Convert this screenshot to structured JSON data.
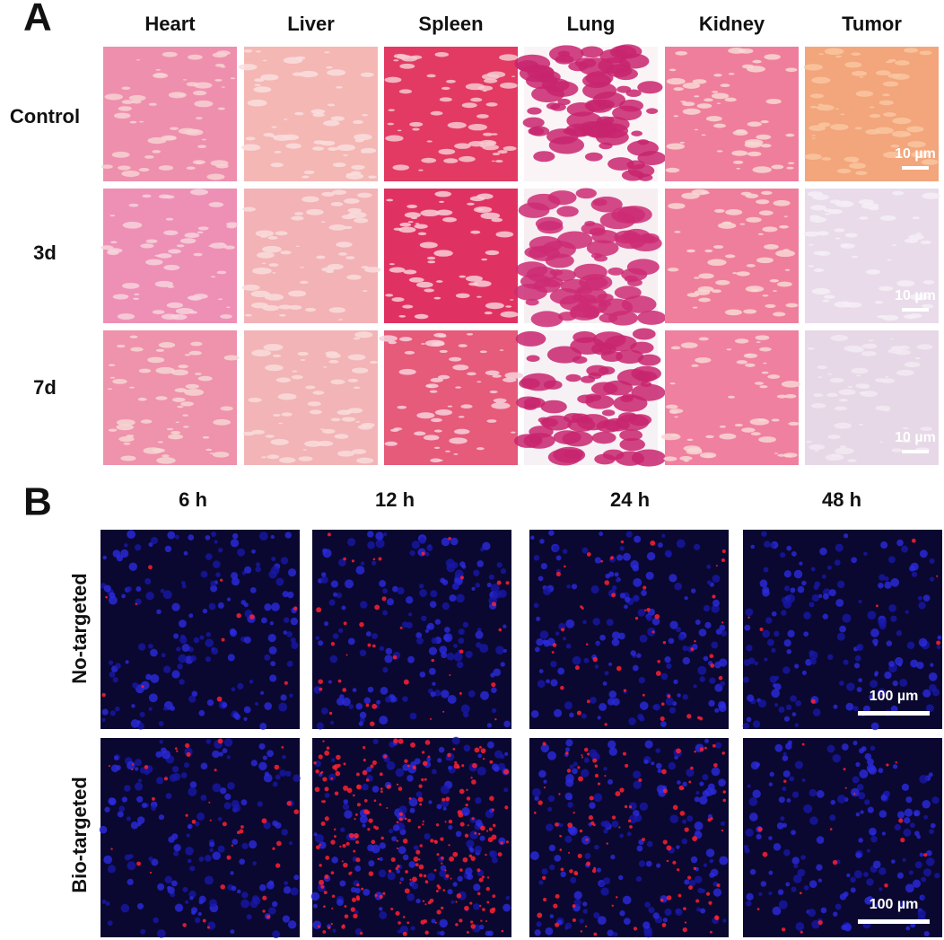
{
  "panel_a": {
    "label": "A",
    "columns": [
      "Heart",
      "Liver",
      "Spleen",
      "Lung",
      "Kidney",
      "Tumor"
    ],
    "rows": [
      "Control",
      "3d",
      "7d"
    ],
    "scale_bars": [
      "10 µm",
      "10 µm",
      "10 µm"
    ]
  },
  "panel_b": {
    "label": "B",
    "columns": [
      "6 h",
      "12 h",
      "24 h",
      "48 h"
    ],
    "rows": [
      "No-targeted",
      "Bio-targeted"
    ],
    "scale_bars": [
      "100 µm",
      "100 µm"
    ]
  }
}
